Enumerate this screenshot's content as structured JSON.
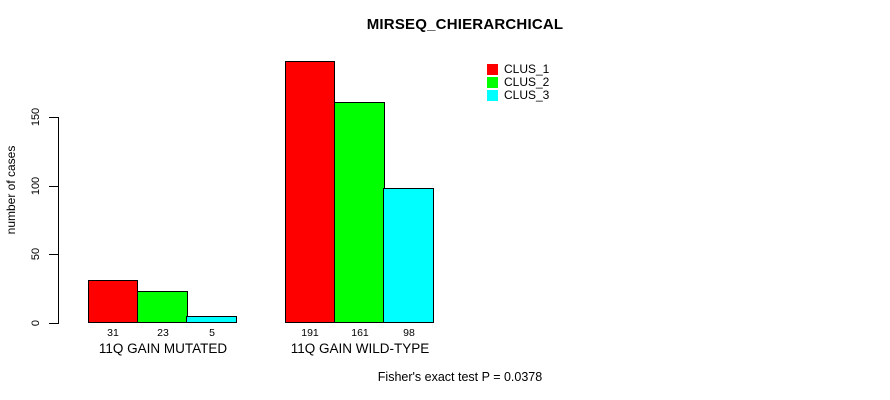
{
  "title": "MIRSEQ_CHIERARCHICAL",
  "ylabel": "number of cases",
  "footer": "Fisher's exact test P = 0.0378",
  "legend": {
    "items": [
      {
        "label": "CLUS_1",
        "color": "#ff0000"
      },
      {
        "label": "CLUS_2",
        "color": "#00ff00"
      },
      {
        "label": "CLUS_3",
        "color": "#00ffff"
      }
    ]
  },
  "chart_data": {
    "type": "bar",
    "title": "MIRSEQ_CHIERARCHICAL",
    "categories": [
      "11Q GAIN MUTATED",
      "11Q GAIN WILD-TYPE"
    ],
    "series": [
      {
        "name": "CLUS_1",
        "color": "#ff0000",
        "values": [
          31,
          191
        ]
      },
      {
        "name": "CLUS_2",
        "color": "#00ff00",
        "values": [
          23,
          161
        ]
      },
      {
        "name": "CLUS_3",
        "color": "#00ffff",
        "values": [
          5,
          98
        ]
      }
    ],
    "bar_value_labels": [
      [
        31,
        23,
        5
      ],
      [
        191,
        161,
        98
      ]
    ],
    "xlabel": "",
    "ylabel": "number of cases",
    "yticks": [
      0,
      50,
      100,
      150
    ],
    "ylim": [
      0,
      200
    ],
    "grid": false,
    "legend_position": "top-right",
    "legend_box": false,
    "annotation": "Fisher's exact test P = 0.0378",
    "bar_border_color": "#000000",
    "background_color": "#ffffff"
  }
}
